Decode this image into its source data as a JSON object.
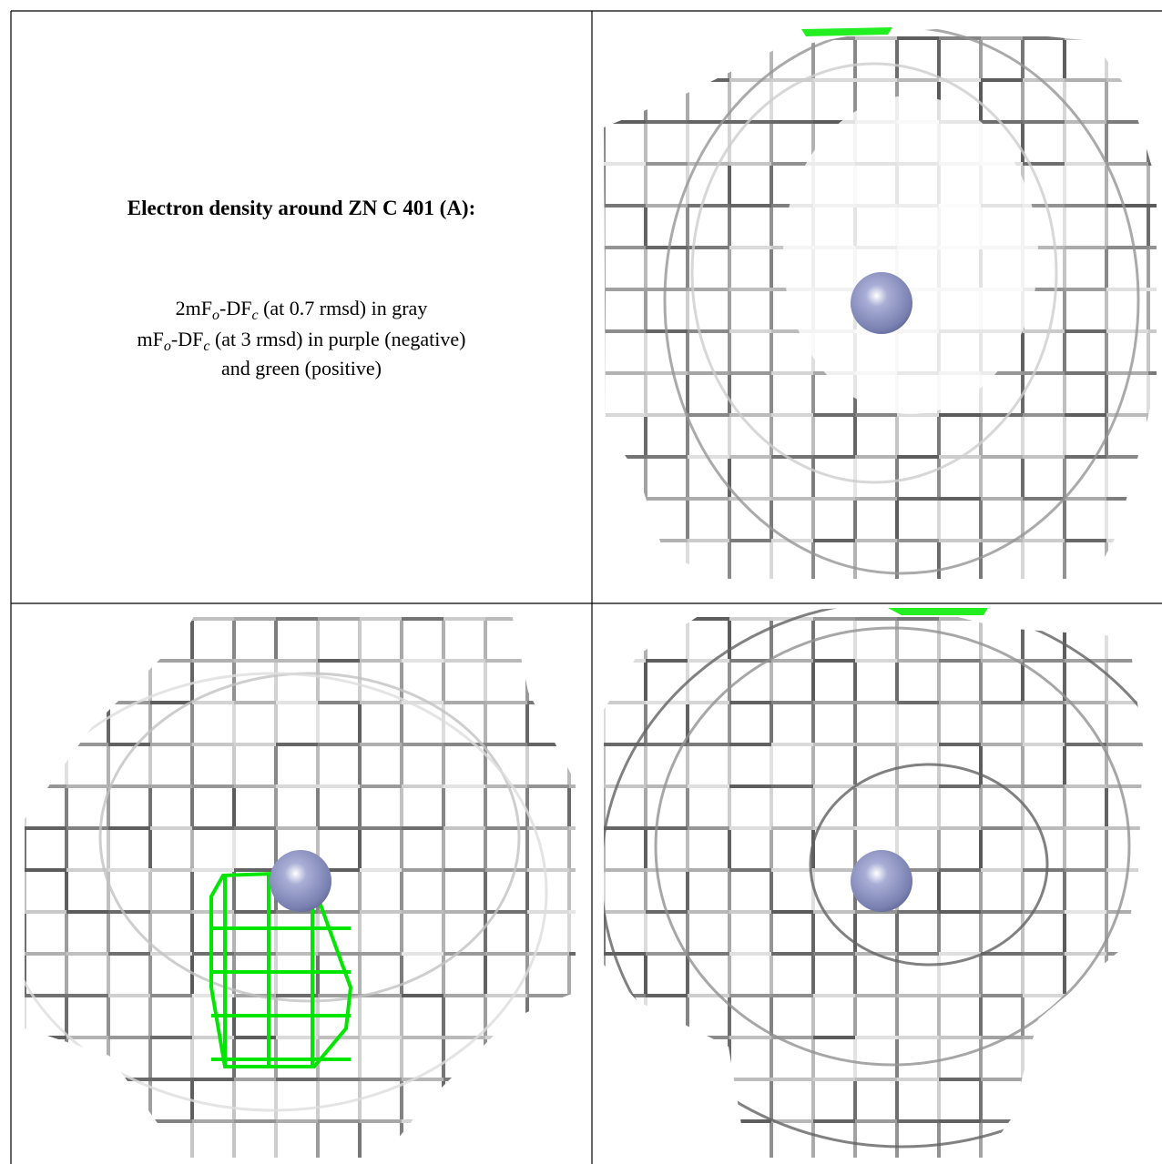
{
  "cell": {
    "title": "Electron density around ZN C 401 (A):",
    "lines": [
      [
        "2mF",
        "o",
        "-DF",
        "c",
        " (at 0.7 rmsd) in gray"
      ],
      [
        "mF",
        "o",
        "-DF",
        "c",
        " (at 3 rmsd) in purple (negative)"
      ],
      [
        "and green (positive)"
      ]
    ]
  }
}
